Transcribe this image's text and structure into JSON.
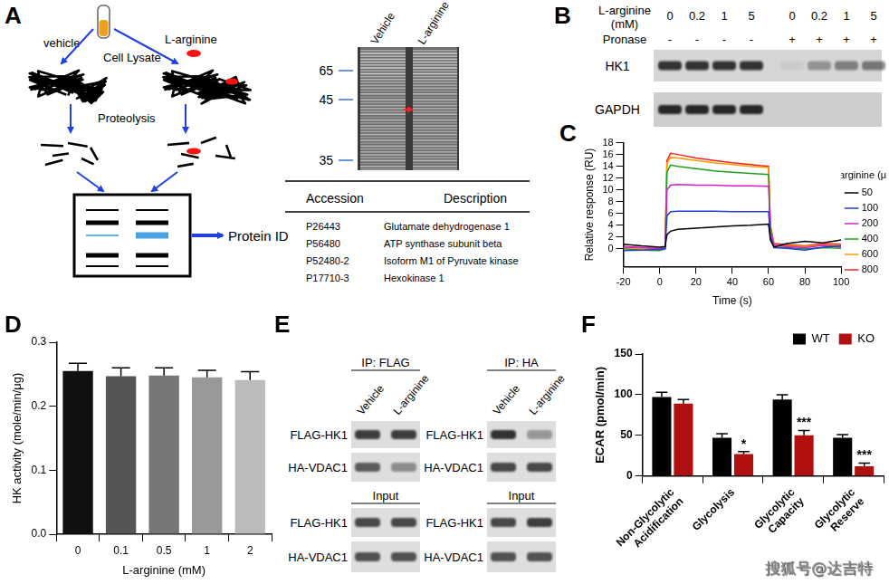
{
  "panel_labels": [
    "A",
    "B",
    "C",
    "D",
    "E",
    "F"
  ],
  "panel_a": {
    "schematic": {
      "left": "vehicle",
      "right": "L-arginine",
      "lysate": "Cell Lysate",
      "step": "Proteolysis",
      "result": "Protein ID"
    },
    "gel": {
      "lanes": [
        "Vehicle",
        "L-arginine"
      ],
      "markers": [
        65,
        45,
        35
      ]
    },
    "table": {
      "header": [
        "Accession",
        "Description"
      ],
      "rows": [
        [
          "P26443",
          "Glutamate dehydrogenase 1"
        ],
        [
          "P56480",
          "ATP synthase subunit beta"
        ],
        [
          "P52480-2",
          "Isoform M1 of Pyruvate kinase"
        ],
        [
          "P17710-3",
          "Hexokinase 1"
        ]
      ]
    }
  },
  "panel_b": {
    "header": "L-arginine (mM)",
    "concentrations": [
      "0",
      "0.2",
      "1",
      "5",
      "0",
      "0.2",
      "1",
      "5"
    ],
    "row_label": "Pronase",
    "pronase": [
      "-",
      "-",
      "-",
      "-",
      "+",
      "+",
      "+",
      "+"
    ],
    "blots": [
      {
        "name": "HK1",
        "intensity": [
          0.85,
          0.85,
          0.85,
          0.85,
          0.05,
          0.35,
          0.45,
          0.5
        ]
      },
      {
        "name": "GAPDH",
        "intensity": [
          0.9,
          0.9,
          0.9,
          0.9,
          0.0,
          0.0,
          0.0,
          0.0
        ]
      }
    ]
  },
  "panel_e": {
    "sections": [
      {
        "title": "IP: FLAG",
        "lanes": [
          "Vehicle",
          "L-arginine"
        ],
        "blots": [
          {
            "name": "FLAG-HK1",
            "intensity": [
              0.8,
              0.8
            ]
          },
          {
            "name": "HA-VDAC1",
            "intensity": [
              0.65,
              0.4
            ]
          }
        ],
        "input_title": "Input",
        "input_blots": [
          {
            "name": "FLAG-HK1",
            "intensity": [
              0.75,
              0.75
            ]
          },
          {
            "name": "HA-VDAC1",
            "intensity": [
              0.7,
              0.7
            ]
          }
        ]
      },
      {
        "title": "IP: HA",
        "lanes": [
          "Vehicle",
          "L-arginine"
        ],
        "blots": [
          {
            "name": "FLAG-HK1",
            "intensity": [
              0.85,
              0.35
            ]
          },
          {
            "name": "HA-VDAC1",
            "intensity": [
              0.75,
              0.75
            ]
          }
        ],
        "input_title": "Input",
        "input_blots": [
          {
            "name": "FLAG-HK1",
            "intensity": [
              0.75,
              0.8
            ]
          },
          {
            "name": "HA-VDAC1",
            "intensity": [
              0.7,
              0.7
            ]
          }
        ]
      }
    ]
  },
  "chart_data": [
    {
      "type": "line",
      "x_label": "Time (s)",
      "y_label": "Relative response (RU)",
      "x": [
        -20,
        -10,
        0,
        3,
        4,
        6,
        10,
        20,
        30,
        40,
        50,
        60,
        61,
        63,
        70,
        80,
        90,
        100
      ],
      "series": [
        {
          "name": "50",
          "color": "#000000",
          "values": [
            0.8,
            0.5,
            0.3,
            0.4,
            2.4,
            3.0,
            3.3,
            3.5,
            3.7,
            3.9,
            4.0,
            4.2,
            1.5,
            0.3,
            0.9,
            1.3,
            1.0,
            1.5
          ]
        },
        {
          "name": "100",
          "color": "#1f3fd0",
          "values": [
            -0.3,
            -0.2,
            -0.1,
            0.0,
            5.6,
            6.3,
            6.4,
            6.4,
            6.4,
            6.3,
            6.3,
            6.3,
            2.0,
            0.2,
            0.1,
            -0.2,
            0.3,
            0.5
          ]
        },
        {
          "name": "200",
          "color": "#d020d0",
          "values": [
            0.3,
            0.2,
            0.1,
            0.3,
            10.0,
            10.8,
            10.9,
            10.8,
            10.8,
            10.7,
            10.7,
            10.6,
            3.0,
            0.6,
            0.4,
            0.2,
            0.6,
            0.3
          ]
        },
        {
          "name": "400",
          "color": "#20a020",
          "values": [
            0.0,
            -0.2,
            -0.3,
            0.0,
            13.0,
            14.2,
            14.0,
            13.6,
            13.2,
            13.0,
            12.8,
            12.6,
            3.5,
            0.3,
            0.2,
            0.0,
            0.2,
            0.1
          ]
        },
        {
          "name": "600",
          "color": "#ff9900",
          "values": [
            0.2,
            0.0,
            -0.1,
            0.1,
            14.5,
            15.5,
            15.4,
            15.0,
            14.6,
            14.3,
            14.0,
            13.8,
            3.8,
            0.6,
            0.5,
            0.4,
            0.7,
            0.6
          ]
        },
        {
          "name": "800",
          "color": "#ff2020",
          "values": [
            0.4,
            0.2,
            0.0,
            0.2,
            15.0,
            16.2,
            16.0,
            15.4,
            15.0,
            14.6,
            14.3,
            14.0,
            4.0,
            0.9,
            0.7,
            0.5,
            0.9,
            0.8
          ]
        }
      ],
      "xlim": [
        -20,
        100
      ],
      "xticks": [
        -20,
        0,
        20,
        40,
        60,
        80,
        100
      ],
      "ylim": [
        -3,
        18
      ],
      "yticks": [
        0,
        2,
        4,
        6,
        8,
        10,
        12,
        14,
        16,
        18
      ],
      "grid": false,
      "legend": "right",
      "legend_title": "L-arginine (μM)"
    },
    {
      "type": "bar",
      "x_label": "L-arginine (mM)",
      "y_label": "HK activity (mole/min/μg)",
      "categories": [
        "0",
        "0.1",
        "0.5",
        "1",
        "2"
      ],
      "values": [
        0.255,
        0.247,
        0.248,
        0.245,
        0.241
      ],
      "errors": [
        0.012,
        0.013,
        0.012,
        0.011,
        0.013
      ],
      "colors": [
        "#111111",
        "#555555",
        "#777777",
        "#999999",
        "#bbbbbb"
      ],
      "ylim": [
        0,
        0.3
      ],
      "yticks": [
        {
          "value": 0,
          "label": "0.0"
        },
        0.1,
        0.2,
        0.3
      ],
      "grid": false
    },
    {
      "type": "bar",
      "y_label": "ECAR (pmol/min)",
      "categories": [
        "Non-Glycolytic Acidification",
        "Glycolysis",
        "Glycolytic Capacity",
        "Glycolytic Reserve"
      ],
      "series": [
        {
          "name": "WT",
          "color": "#000000",
          "values": [
            97,
            47,
            94,
            47
          ],
          "errors": [
            6,
            5,
            6,
            4
          ]
        },
        {
          "name": "KO",
          "color": "#b01010",
          "values": [
            89,
            27,
            50,
            12
          ],
          "errors": [
            5,
            3,
            6,
            4
          ],
          "annotations": [
            null,
            "*",
            "***",
            "***"
          ]
        }
      ],
      "ylim": [
        0,
        150
      ],
      "yticks": [
        0,
        50,
        100,
        150
      ],
      "grid": false,
      "legend": "upper right"
    }
  ],
  "watermark": "搜狐号@达吉特"
}
